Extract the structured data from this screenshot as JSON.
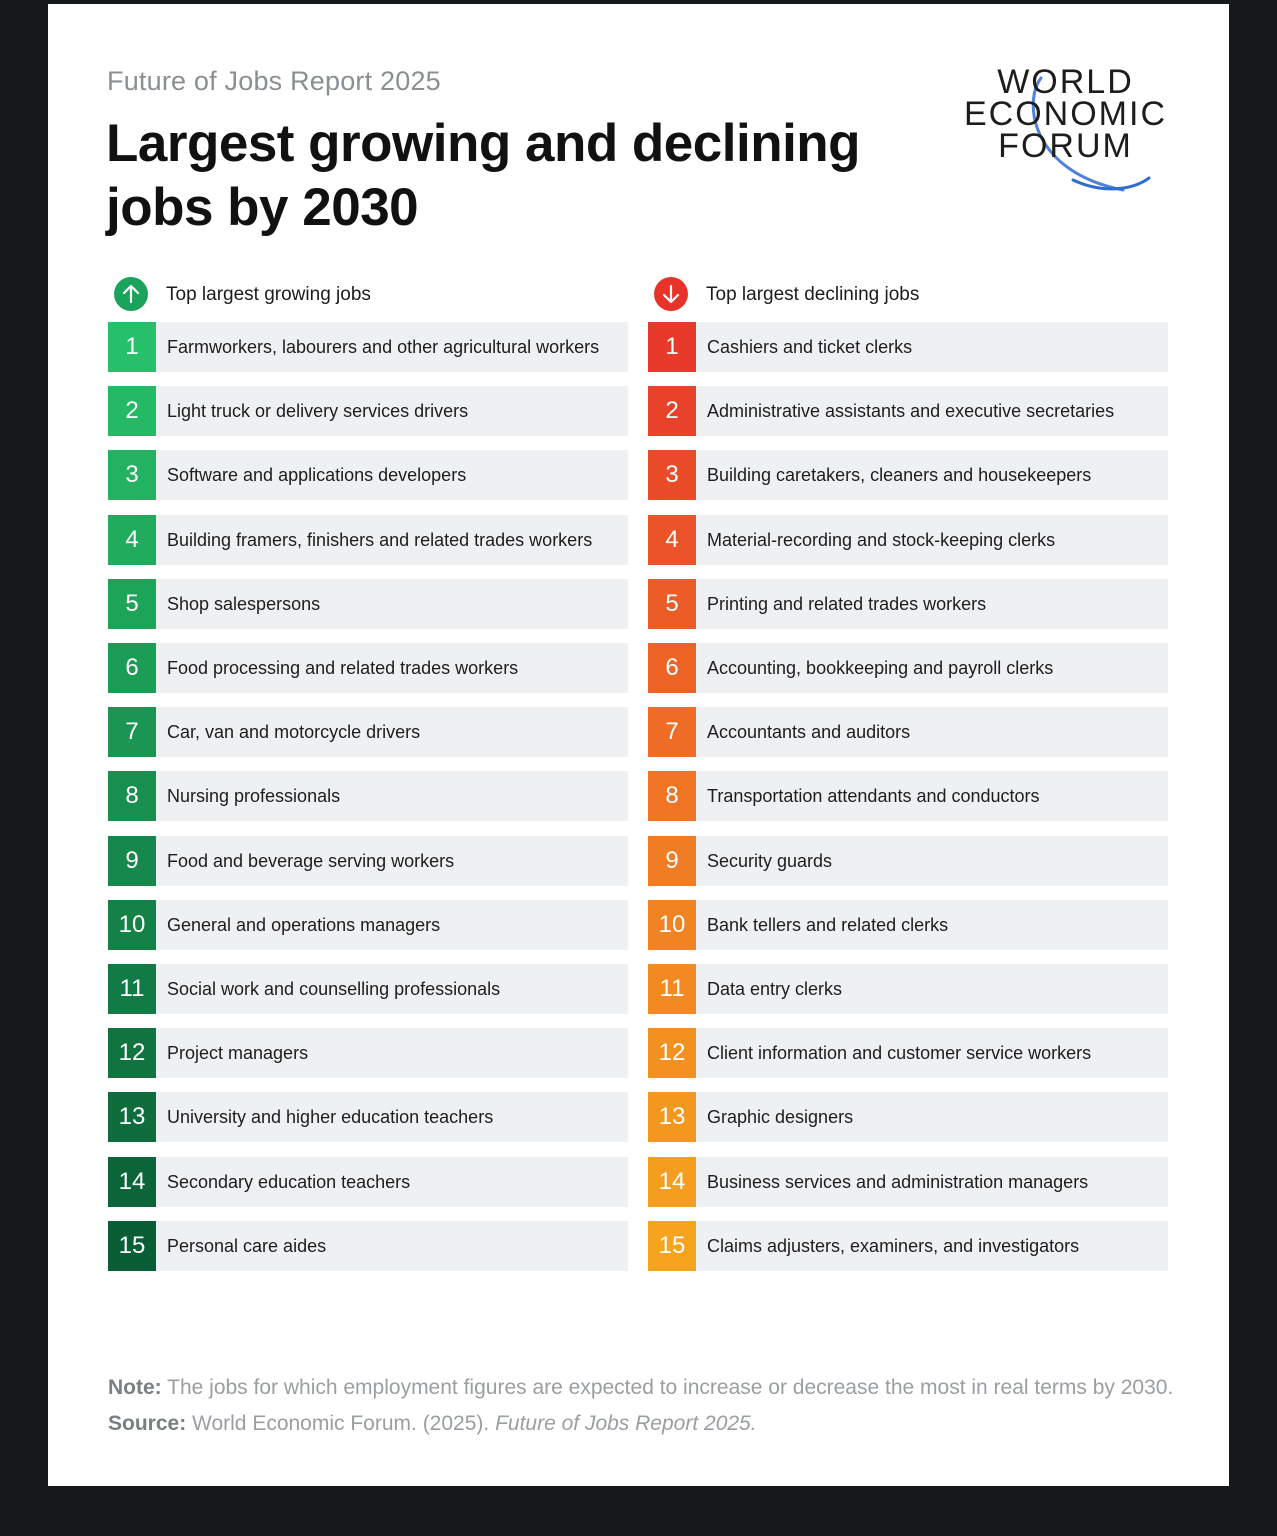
{
  "kicker": "Future of Jobs Report 2025",
  "title": "Largest growing and declining jobs by 2030",
  "logo": {
    "line1": "WORLD",
    "line2": "ECONOMIC",
    "line3": "FORUM"
  },
  "growing": {
    "heading": "Top largest growing jobs",
    "arrow_icon": "arrow-up-icon",
    "color": "#1aa35a",
    "items": [
      {
        "rank": "1",
        "label": "Farmworkers, labourers and other agricultural workers",
        "color": "#26c06a"
      },
      {
        "rank": "2",
        "label": "Light truck or delivery services drivers",
        "color": "#24b965"
      },
      {
        "rank": "3",
        "label": "Software and applications developers",
        "color": "#22b261"
      },
      {
        "rank": "4",
        "label": "Building framers, finishers and related trades workers",
        "color": "#20ab5d"
      },
      {
        "rank": "5",
        "label": "Shop salespersons",
        "color": "#1ea459"
      },
      {
        "rank": "6",
        "label": "Food processing and related trades workers",
        "color": "#1c9d56"
      },
      {
        "rank": "7",
        "label": "Car, van and motorcycle drivers",
        "color": "#1a9652"
      },
      {
        "rank": "8",
        "label": "Nursing professionals",
        "color": "#188f4e"
      },
      {
        "rank": "9",
        "label": "Food and beverage serving workers",
        "color": "#16884b"
      },
      {
        "rank": "10",
        "label": "General and operations managers",
        "color": "#148147"
      },
      {
        "rank": "11",
        "label": "Social work and counselling professionals",
        "color": "#127a44"
      },
      {
        "rank": "12",
        "label": "Project managers",
        "color": "#107340"
      },
      {
        "rank": "13",
        "label": "University and higher education teachers",
        "color": "#0e6c3d"
      },
      {
        "rank": "14",
        "label": "Secondary education teachers",
        "color": "#0c6539"
      },
      {
        "rank": "15",
        "label": "Personal care aides",
        "color": "#0a5e36"
      }
    ]
  },
  "declining": {
    "heading": "Top largest declining jobs",
    "arrow_icon": "arrow-down-icon",
    "color": "#e8332a",
    "items": [
      {
        "rank": "1",
        "label": "Cashiers and ticket clerks",
        "color": "#e83a2a"
      },
      {
        "rank": "2",
        "label": "Administrative assistants and executive secretaries",
        "color": "#e9422a"
      },
      {
        "rank": "3",
        "label": "Building caretakers, cleaners and housekeepers",
        "color": "#ea4b29"
      },
      {
        "rank": "4",
        "label": "Material-recording and stock-keeping clerks",
        "color": "#eb5428"
      },
      {
        "rank": "5",
        "label": "Printing and related trades workers",
        "color": "#ec5c27"
      },
      {
        "rank": "6",
        "label": "Accounting, bookkeeping and payroll clerks",
        "color": "#ed6426"
      },
      {
        "rank": "7",
        "label": "Accountants and auditors",
        "color": "#ee6c25"
      },
      {
        "rank": "8",
        "label": "Transportation attendants and conductors",
        "color": "#ef7424"
      },
      {
        "rank": "9",
        "label": "Security guards",
        "color": "#f07c23"
      },
      {
        "rank": "10",
        "label": "Bank tellers and related clerks",
        "color": "#f18322"
      },
      {
        "rank": "11",
        "label": "Data entry clerks",
        "color": "#f28a21"
      },
      {
        "rank": "12",
        "label": "Client information and customer service workers",
        "color": "#f39120"
      },
      {
        "rank": "13",
        "label": "Graphic designers",
        "color": "#f4971f"
      },
      {
        "rank": "14",
        "label": "Business services and administration managers",
        "color": "#f59d1e"
      },
      {
        "rank": "15",
        "label": "Claims adjusters, examiners, and investigators",
        "color": "#f6a31d"
      }
    ]
  },
  "note": {
    "note_label": "Note:",
    "note_text": " The jobs for which employment figures are expected to increase or decrease the most in real terms by 2030.",
    "source_label": "Source:",
    "source_text": " World Economic Forum. (2025). ",
    "source_title": "Future of Jobs Report 2025."
  }
}
